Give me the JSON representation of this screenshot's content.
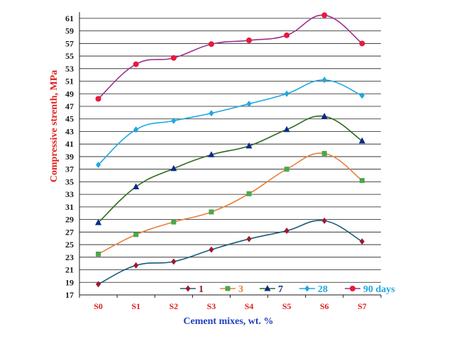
{
  "chart_data": {
    "type": "line",
    "title": "",
    "xlabel": "Cement mixes, wt. %",
    "ylabel": "Compressive strenth, MPa",
    "categories": [
      "S0",
      "S1",
      "S2",
      "S3",
      "S4",
      "S5",
      "S6",
      "S7"
    ],
    "ylim": [
      17,
      62
    ],
    "yticks": [
      17,
      19,
      21,
      23,
      25,
      27,
      29,
      31,
      33,
      35,
      37,
      39,
      41,
      43,
      45,
      47,
      49,
      51,
      53,
      55,
      57,
      59,
      61
    ],
    "grid": "horizontal",
    "legend_position": "bottom-right",
    "series": [
      {
        "name": "1",
        "color": "#1a5c7a",
        "marker": "diamond",
        "marker_color": "#a01830",
        "label_color": "#8b1a2e",
        "values": [
          18.7,
          21.7,
          22.3,
          24.2,
          25.9,
          27.2,
          28.8,
          25.5
        ]
      },
      {
        "name": "3",
        "color": "#e8803a",
        "marker": "square",
        "marker_color": "#4aa84a",
        "label_color": "#e8803a",
        "values": [
          23.5,
          26.6,
          28.6,
          30.2,
          33.1,
          37.0,
          39.5,
          35.2
        ]
      },
      {
        "name": "7",
        "color": "#2e6b1e",
        "marker": "triangle",
        "marker_color": "#0a2a8c",
        "label_color": "#0a2a8c",
        "values": [
          28.5,
          34.2,
          37.1,
          39.3,
          40.7,
          43.3,
          45.4,
          41.5
        ]
      },
      {
        "name": "28",
        "color": "#1fa7e0",
        "marker": "diamond",
        "marker_color": "#1fa7e0",
        "label_color": "#1fa7e0",
        "values": [
          37.7,
          43.3,
          44.7,
          45.9,
          47.4,
          49.0,
          51.2,
          48.7
        ]
      },
      {
        "name": "90 days",
        "color": "#9b3090",
        "marker": "circle",
        "marker_color": "#e8193c",
        "label_color": "#1fa7e0",
        "values": [
          48.2,
          53.7,
          54.7,
          56.9,
          57.5,
          58.3,
          61.5,
          57.0
        ]
      }
    ]
  }
}
